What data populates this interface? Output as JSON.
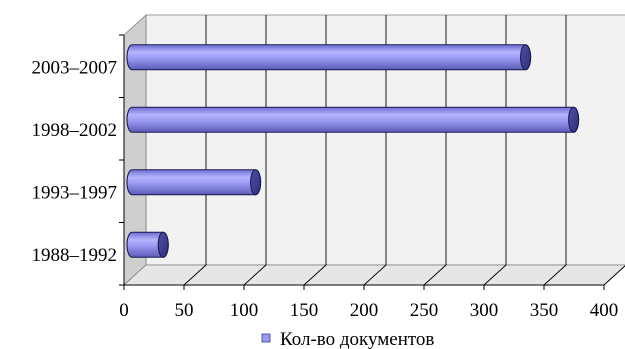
{
  "chart_data": {
    "type": "bar",
    "orientation": "horizontal",
    "style": "3d-cylinder",
    "categories": [
      "1988–1992",
      "1993–1997",
      "1998–2002",
      "2003–2007"
    ],
    "series": [
      {
        "name": "Кол-во документов",
        "values": [
          26,
          103,
          368,
          328
        ],
        "color": "#9a9af2"
      }
    ],
    "xlim": [
      0,
      400
    ],
    "xticks": [
      "0",
      "50",
      "100",
      "150",
      "200",
      "250",
      "300",
      "350",
      "400"
    ],
    "grid": true,
    "legend_position": "bottom",
    "colors": {
      "bar": "#9a9af2",
      "bar_dark": "#3a3a8c",
      "wall": "#f2f2f2",
      "floor": "#d8d8d8"
    }
  }
}
